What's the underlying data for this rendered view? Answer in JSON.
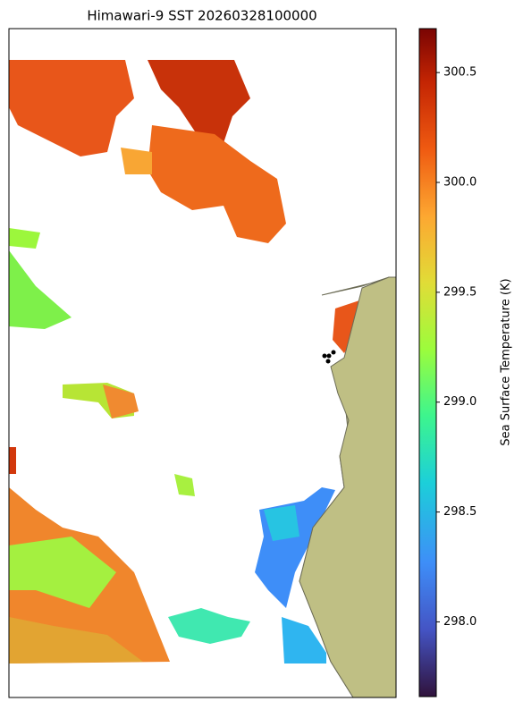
{
  "title": "Himawari-9 SST 20260328100000",
  "colorbar": {
    "label": "Sea Surface Temperature (K)",
    "lim": [
      297.66,
      300.7
    ],
    "ticks": [
      {
        "value": 298,
        "label": "298.0"
      },
      298.5,
      {
        "value": 299,
        "label": "299.0"
      },
      299.5,
      {
        "value": 300,
        "label": "300.0"
      },
      300.5
    ]
  }
}
